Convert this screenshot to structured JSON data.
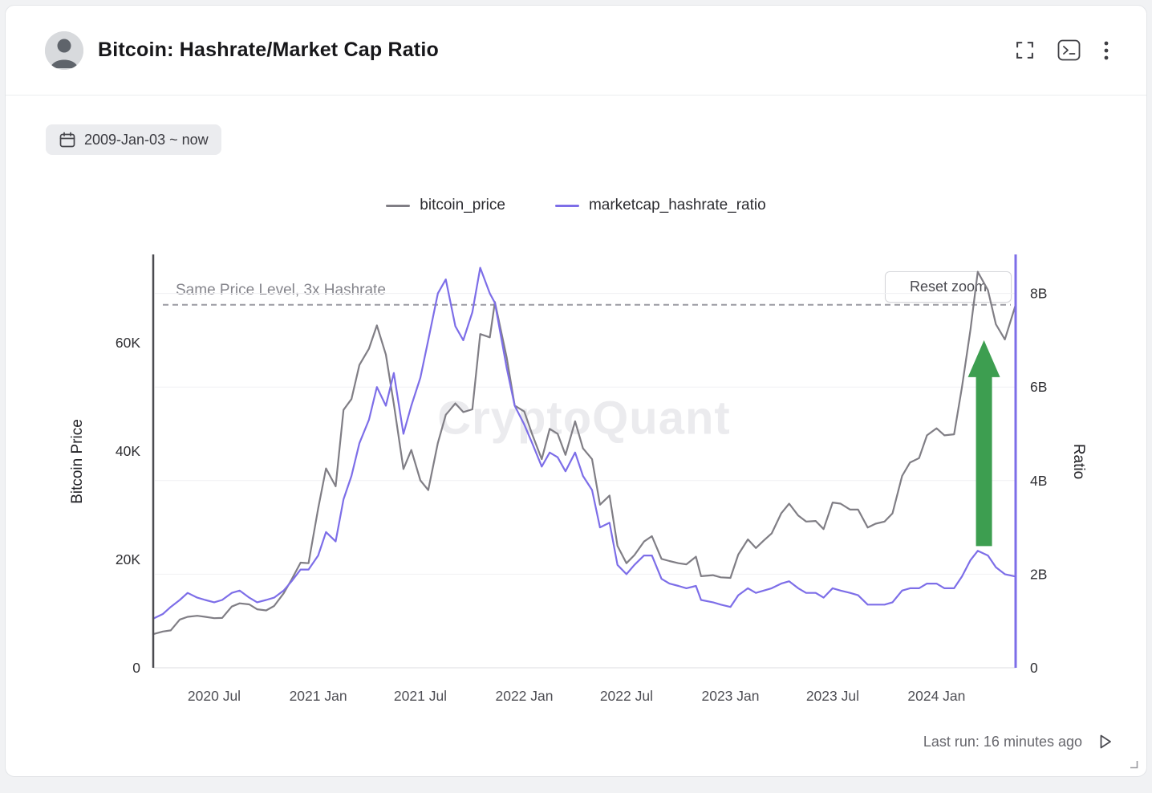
{
  "header": {
    "title": "Bitcoin: Hashrate/Market Cap Ratio"
  },
  "icons": [
    "avatar",
    "fullscreen-icon",
    "console-icon",
    "kebab-menu-icon",
    "calendar-icon",
    "play-icon",
    "resize-corner-icon"
  ],
  "toolbar": {
    "date_range": "2009-Jan-03 ~ now"
  },
  "chart_controls": {
    "reset_zoom": "Reset zoom"
  },
  "watermark": "CryptoQuant",
  "footer": {
    "last_run": "Last run: 16 minutes ago"
  },
  "chart_data": {
    "type": "line",
    "title": "Bitcoin: Hashrate/Market Cap Ratio",
    "legend_position": "top-center",
    "grid": "horizontal",
    "ylabel_left": "Bitcoin Price",
    "ylabel_right": "Ratio",
    "ylim_left": [
      0,
      76000
    ],
    "ylim_right": [
      0,
      8.8
    ],
    "yticks_left": {
      "values": [
        0,
        20000,
        40000,
        60000
      ],
      "labels": [
        "0",
        "20K",
        "40K",
        "60K"
      ]
    },
    "yticks_right": {
      "values": [
        0,
        2,
        4,
        6,
        8
      ],
      "labels": [
        "0",
        "2B",
        "4B",
        "6B",
        "8B"
      ]
    },
    "xticks": {
      "values": [
        "2020-07-01",
        "2021-01-01",
        "2021-07-01",
        "2022-01-01",
        "2022-07-01",
        "2023-01-01",
        "2023-07-01",
        "2024-01-01"
      ],
      "labels": [
        "2020 Jul",
        "2021 Jan",
        "2021 Jul",
        "2022 Jan",
        "2022 Jul",
        "2023 Jan",
        "2023 Jul",
        "2024 Jan"
      ]
    },
    "x": [
      "2020-03-15",
      "2020-04-01",
      "2020-04-15",
      "2020-05-01",
      "2020-05-15",
      "2020-06-01",
      "2020-06-15",
      "2020-07-01",
      "2020-07-15",
      "2020-08-01",
      "2020-08-15",
      "2020-09-01",
      "2020-09-15",
      "2020-10-01",
      "2020-10-15",
      "2020-11-01",
      "2020-11-15",
      "2020-12-01",
      "2020-12-15",
      "2021-01-01",
      "2021-01-15",
      "2021-02-01",
      "2021-02-15",
      "2021-03-01",
      "2021-03-15",
      "2021-04-01",
      "2021-04-15",
      "2021-05-01",
      "2021-05-15",
      "2021-06-01",
      "2021-06-15",
      "2021-07-01",
      "2021-07-15",
      "2021-08-01",
      "2021-08-15",
      "2021-09-01",
      "2021-09-15",
      "2021-10-01",
      "2021-10-15",
      "2021-11-01",
      "2021-11-10",
      "2021-12-01",
      "2021-12-15",
      "2022-01-01",
      "2022-01-15",
      "2022-02-01",
      "2022-02-15",
      "2022-03-01",
      "2022-03-15",
      "2022-04-01",
      "2022-04-15",
      "2022-05-01",
      "2022-05-15",
      "2022-06-01",
      "2022-06-15",
      "2022-07-01",
      "2022-07-15",
      "2022-08-01",
      "2022-08-15",
      "2022-09-01",
      "2022-09-15",
      "2022-10-01",
      "2022-10-15",
      "2022-11-01",
      "2022-11-10",
      "2022-12-01",
      "2022-12-15",
      "2023-01-01",
      "2023-01-15",
      "2023-02-01",
      "2023-02-15",
      "2023-03-01",
      "2023-03-15",
      "2023-04-01",
      "2023-04-15",
      "2023-05-01",
      "2023-05-15",
      "2023-06-01",
      "2023-06-15",
      "2023-07-01",
      "2023-07-15",
      "2023-08-01",
      "2023-08-15",
      "2023-09-01",
      "2023-09-15",
      "2023-10-01",
      "2023-10-15",
      "2023-11-01",
      "2023-11-15",
      "2023-12-01",
      "2023-12-15",
      "2024-01-01",
      "2024-01-15",
      "2024-02-01",
      "2024-02-15",
      "2024-03-01",
      "2024-03-14",
      "2024-04-01",
      "2024-04-15",
      "2024-05-01",
      "2024-05-20"
    ],
    "series": [
      {
        "name": "bitcoin_price",
        "axis": "left",
        "color": "#807e85",
        "values": [
          6200,
          6700,
          6900,
          8900,
          9400,
          9600,
          9400,
          9150,
          9200,
          11300,
          11900,
          11700,
          10800,
          10600,
          11400,
          13750,
          16300,
          19400,
          19300,
          29400,
          36800,
          33500,
          47600,
          49600,
          55900,
          58900,
          63200,
          57800,
          48700,
          36700,
          40200,
          34600,
          32800,
          41500,
          46700,
          48800,
          47200,
          47700,
          61600,
          61000,
          67500,
          57200,
          48400,
          47300,
          43100,
          38500,
          44100,
          43200,
          39300,
          45500,
          40500,
          38500,
          30100,
          31800,
          22500,
          19300,
          20800,
          23300,
          24300,
          20100,
          19700,
          19300,
          19100,
          20500,
          16900,
          17100,
          16700,
          16600,
          20900,
          23700,
          22100,
          23500,
          24800,
          28500,
          30300,
          28100,
          27000,
          27100,
          25600,
          30500,
          30300,
          29200,
          29200,
          25900,
          26600,
          27000,
          28500,
          35400,
          37900,
          38700,
          42900,
          44200,
          42900,
          43100,
          51800,
          62400,
          73100,
          69700,
          63400,
          60600,
          67000
        ]
      },
      {
        "name": "marketcap_hashrate_ratio",
        "axis": "right",
        "color": "#7d6ee8",
        "values": [
          1.05,
          1.15,
          1.3,
          1.45,
          1.6,
          1.5,
          1.45,
          1.4,
          1.45,
          1.6,
          1.65,
          1.5,
          1.4,
          1.45,
          1.5,
          1.65,
          1.85,
          2.1,
          2.1,
          2.4,
          2.9,
          2.7,
          3.6,
          4.1,
          4.8,
          5.3,
          6.0,
          5.6,
          6.3,
          5.0,
          5.6,
          6.2,
          7.0,
          8.0,
          8.3,
          7.3,
          7.0,
          7.6,
          8.55,
          8.0,
          7.8,
          6.4,
          5.6,
          5.2,
          4.8,
          4.3,
          4.6,
          4.5,
          4.2,
          4.6,
          4.1,
          3.8,
          3.0,
          3.1,
          2.2,
          2.0,
          2.2,
          2.4,
          2.4,
          1.9,
          1.8,
          1.75,
          1.7,
          1.75,
          1.45,
          1.4,
          1.35,
          1.3,
          1.55,
          1.7,
          1.6,
          1.65,
          1.7,
          1.8,
          1.85,
          1.7,
          1.6,
          1.6,
          1.5,
          1.7,
          1.65,
          1.6,
          1.55,
          1.35,
          1.35,
          1.35,
          1.4,
          1.65,
          1.7,
          1.7,
          1.8,
          1.8,
          1.7,
          1.7,
          1.95,
          2.3,
          2.5,
          2.4,
          2.15,
          2.0,
          1.95
        ]
      }
    ],
    "annotations": {
      "dashed_line": {
        "axis": "left",
        "value": 67000,
        "label": "Same Price Level, 3x Hashrate",
        "color": "#9b9ba2"
      },
      "arrow": {
        "direction": "up",
        "x": "2024-03-25",
        "from_ratio": 2.6,
        "to_ratio": 7.0,
        "color": "#3d9e50"
      }
    }
  }
}
